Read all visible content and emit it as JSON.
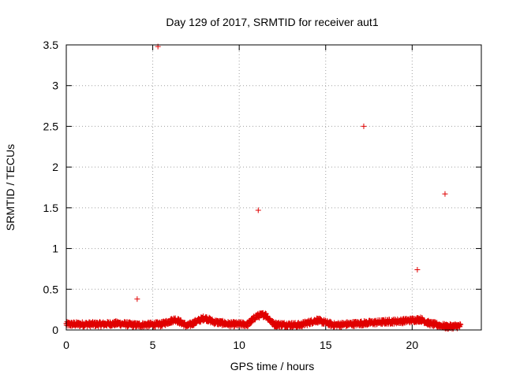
{
  "chart_data": {
    "type": "scatter",
    "title": "Day 129 of 2017, SRMTID for receiver aut1",
    "xlabel": "GPS time / hours",
    "ylabel": "SRMTID / TECUs",
    "xlim": [
      0,
      24
    ],
    "ylim": [
      0,
      3.5
    ],
    "xticks": [
      "0",
      "5",
      "10",
      "15",
      "20"
    ],
    "yticks": [
      "0",
      "0.5",
      "1",
      "1.5",
      "2",
      "2.5",
      "3",
      "3.5"
    ],
    "grid": true,
    "marker": "plus",
    "series": [
      {
        "name": "aut1",
        "color": "#e00000",
        "outliers": [
          {
            "x": 4.1,
            "y": 0.38
          },
          {
            "x": 5.3,
            "y": 3.48
          },
          {
            "x": 11.1,
            "y": 1.47
          },
          {
            "x": 17.2,
            "y": 2.5
          },
          {
            "x": 20.3,
            "y": 0.74
          },
          {
            "x": 21.9,
            "y": 1.67
          }
        ],
        "band": {
          "x_start": 0.0,
          "x_end": 22.8,
          "baseline": [
            {
              "x": 0.0,
              "y": 0.07
            },
            {
              "x": 2.0,
              "y": 0.07
            },
            {
              "x": 3.0,
              "y": 0.08
            },
            {
              "x": 4.0,
              "y": 0.06
            },
            {
              "x": 5.5,
              "y": 0.07
            },
            {
              "x": 6.3,
              "y": 0.13
            },
            {
              "x": 7.0,
              "y": 0.05
            },
            {
              "x": 8.0,
              "y": 0.15
            },
            {
              "x": 8.5,
              "y": 0.1
            },
            {
              "x": 9.5,
              "y": 0.07
            },
            {
              "x": 10.5,
              "y": 0.07
            },
            {
              "x": 11.0,
              "y": 0.17
            },
            {
              "x": 11.5,
              "y": 0.19
            },
            {
              "x": 12.0,
              "y": 0.07
            },
            {
              "x": 13.5,
              "y": 0.06
            },
            {
              "x": 14.5,
              "y": 0.12
            },
            {
              "x": 15.5,
              "y": 0.06
            },
            {
              "x": 17.0,
              "y": 0.08
            },
            {
              "x": 18.5,
              "y": 0.1
            },
            {
              "x": 19.5,
              "y": 0.11
            },
            {
              "x": 20.5,
              "y": 0.13
            },
            {
              "x": 21.0,
              "y": 0.08
            },
            {
              "x": 22.0,
              "y": 0.04
            },
            {
              "x": 22.8,
              "y": 0.05
            }
          ]
        }
      }
    ]
  }
}
